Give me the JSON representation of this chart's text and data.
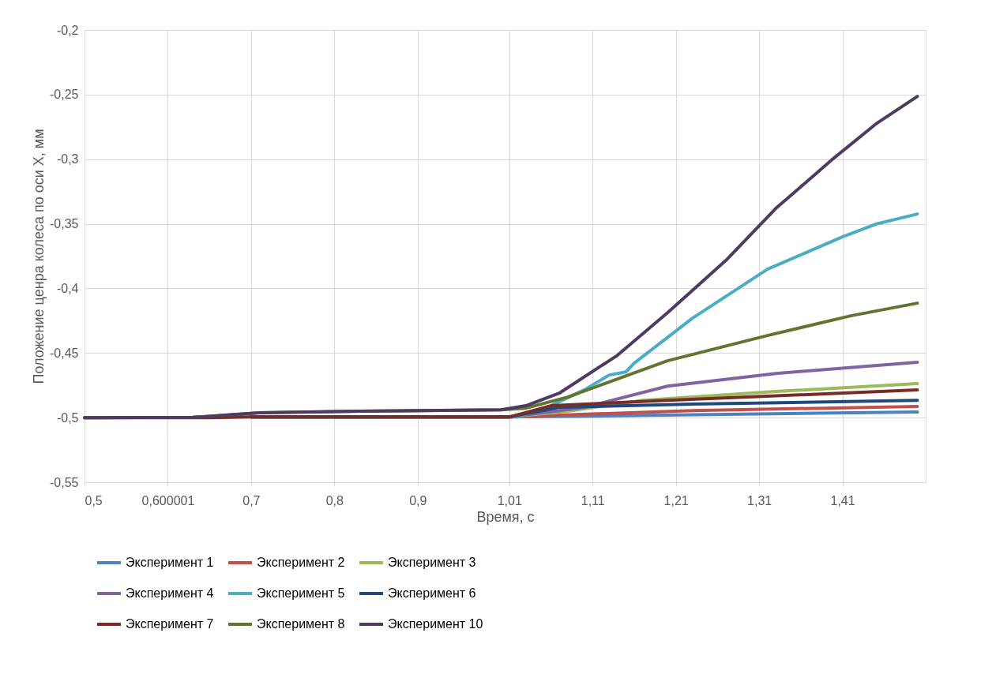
{
  "chart_data": {
    "type": "line",
    "xlabel": "Время, с",
    "ylabel": "Положение ценра колеса по оси X, мм",
    "xlim": [
      0.5,
      1.51
    ],
    "ylim": [
      -0.55,
      -0.2
    ],
    "xticks": [
      {
        "value": 0.5,
        "label": "0,5"
      },
      {
        "value": 0.600001,
        "label": "0,600001"
      },
      {
        "value": 0.7,
        "label": "0,7"
      },
      {
        "value": 0.8,
        "label": "0,8"
      },
      {
        "value": 0.9,
        "label": "0,9"
      },
      {
        "value": 1.01,
        "label": "1,01"
      },
      {
        "value": 1.11,
        "label": "1,11"
      },
      {
        "value": 1.21,
        "label": "1,21"
      },
      {
        "value": 1.31,
        "label": "1,31"
      },
      {
        "value": 1.41,
        "label": "1,41"
      }
    ],
    "yticks": [
      {
        "value": -0.55,
        "label": "-0,55"
      },
      {
        "value": -0.5,
        "label": "-0,5"
      },
      {
        "value": -0.45,
        "label": "-0,45"
      },
      {
        "value": -0.4,
        "label": "-0,4"
      },
      {
        "value": -0.35,
        "label": "-0,35"
      },
      {
        "value": -0.3,
        "label": "-0,3"
      },
      {
        "value": -0.25,
        "label": "-0,25"
      },
      {
        "value": -0.2,
        "label": "-0,2"
      }
    ],
    "grid": true,
    "legend": "bottom",
    "line_style": "solid",
    "marker": "none",
    "series": [
      {
        "name": "Эксперимент 1",
        "color": "#4f81bd",
        "x": [
          1.01,
          1.5
        ],
        "values": [
          -0.4995,
          -0.4957
        ]
      },
      {
        "name": "Эксперимент 2",
        "color": "#c0504d",
        "x": [
          0.7,
          1.01,
          1.23,
          1.5
        ],
        "values": [
          -0.4995,
          -0.4995,
          -0.4945,
          -0.4914
        ]
      },
      {
        "name": "Эксперимент 3",
        "color": "#9bbb59",
        "x": [
          0.7,
          1.01,
          1.08,
          1.17,
          1.33,
          1.5
        ],
        "values": [
          -0.4995,
          -0.4995,
          -0.4951,
          -0.4866,
          -0.4798,
          -0.4737
        ]
      },
      {
        "name": "Эксперимент 4",
        "color": "#8064a2",
        "x": [
          0.7,
          1.01,
          1.1,
          1.2,
          1.33,
          1.5
        ],
        "values": [
          -0.4995,
          -0.4995,
          -0.4921,
          -0.4756,
          -0.4658,
          -0.4572
        ]
      },
      {
        "name": "Эксперимент 5",
        "color": "#4bacc6",
        "x": [
          0.7,
          1.0,
          1.02,
          1.06,
          1.1,
          1.13,
          1.15,
          1.16,
          1.23,
          1.32,
          1.41,
          1.45,
          1.5
        ],
        "values": [
          -0.4995,
          -0.4995,
          -0.4994,
          -0.4908,
          -0.4786,
          -0.467,
          -0.4646,
          -0.4578,
          -0.423,
          -0.3852,
          -0.3601,
          -0.3503,
          -0.3424
        ]
      },
      {
        "name": "Эксперимент 6",
        "color": "#1f497d",
        "x": [
          0.7,
          1.01,
          1.07,
          1.23,
          1.5
        ],
        "values": [
          -0.4995,
          -0.4995,
          -0.492,
          -0.4896,
          -0.4866
        ]
      },
      {
        "name": "Эксперимент 7",
        "color": "#772c2a",
        "x": [
          0.5,
          0.65,
          0.7,
          1.01,
          1.06,
          1.2,
          1.5
        ],
        "values": [
          -0.5,
          -0.5,
          -0.4995,
          -0.4995,
          -0.4908,
          -0.4866,
          -0.4786
        ]
      },
      {
        "name": "Эксперимент 8",
        "color": "#5f7530",
        "x": [
          0.5,
          0.63,
          0.71,
          0.83,
          1.0,
          1.03,
          1.08,
          1.2,
          1.32,
          1.42,
          1.5
        ],
        "values": [
          -0.5,
          -0.4998,
          -0.4963,
          -0.4951,
          -0.4939,
          -0.4927,
          -0.4841,
          -0.456,
          -0.4365,
          -0.4212,
          -0.4114
        ]
      },
      {
        "name": "Эксперимент 10",
        "color": "#4d3b62",
        "x": [
          0.5,
          0.63,
          0.71,
          0.83,
          1.0,
          1.03,
          1.07,
          1.14,
          1.2,
          1.27,
          1.33,
          1.4,
          1.45,
          1.5
        ],
        "values": [
          -0.5,
          -0.4998,
          -0.4963,
          -0.4951,
          -0.4939,
          -0.4908,
          -0.4811,
          -0.4517,
          -0.4188,
          -0.3784,
          -0.3381,
          -0.299,
          -0.2728,
          -0.2514
        ]
      }
    ]
  }
}
